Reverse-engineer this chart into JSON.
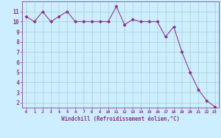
{
  "x": [
    0,
    1,
    2,
    3,
    4,
    5,
    6,
    7,
    8,
    9,
    10,
    11,
    12,
    13,
    14,
    15,
    16,
    17,
    18,
    19,
    20,
    21,
    22,
    23
  ],
  "y": [
    10.5,
    10.0,
    11.0,
    10.0,
    10.5,
    11.0,
    10.0,
    10.0,
    10.0,
    10.0,
    10.0,
    11.5,
    9.7,
    10.2,
    10.0,
    10.0,
    10.0,
    8.5,
    9.5,
    7.0,
    5.0,
    3.3,
    2.2,
    1.6
  ],
  "line_color": "#883388",
  "marker": "D",
  "marker_size": 1.8,
  "line_width": 0.8,
  "bg_color": "#cceeff",
  "grid_color": "#aacccc",
  "xlabel": "Windchill (Refroidissement éolien,°C)",
  "xlabel_color": "#883388",
  "tick_color": "#883388",
  "ylim": [
    1.5,
    12.0
  ],
  "xlim": [
    -0.5,
    23.5
  ],
  "yticks": [
    2,
    3,
    4,
    5,
    6,
    7,
    8,
    9,
    10,
    11
  ],
  "xticks": [
    0,
    1,
    2,
    3,
    4,
    5,
    6,
    7,
    8,
    9,
    10,
    11,
    12,
    13,
    14,
    15,
    16,
    17,
    18,
    19,
    20,
    21,
    22,
    23
  ]
}
